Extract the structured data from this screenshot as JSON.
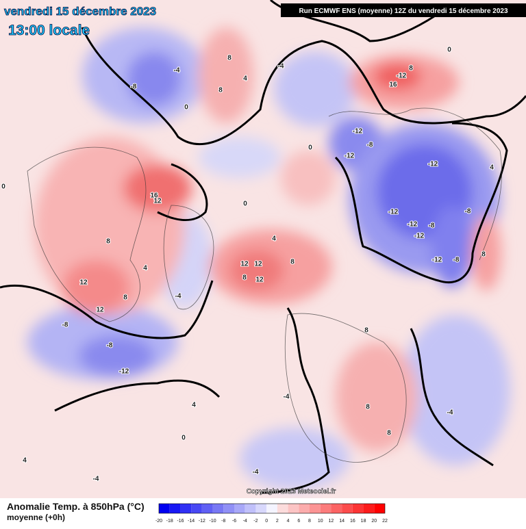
{
  "header": {
    "date": "vendredi 15 décembre 2023",
    "time": "13:00 locale",
    "run": "Run ECMWF ENS (moyenne) 12Z du vendredi 15 décembre 2023"
  },
  "copyright": "Copyright 2023 Meteociel.fr",
  "legend": {
    "title": "Anomalie Temp. à 850hPa (°C)",
    "subtitle": "moyenne  (+0h)",
    "ticks": [
      -20,
      -18,
      -16,
      -14,
      -12,
      -10,
      -8,
      -6,
      -4,
      -2,
      0,
      2,
      4,
      6,
      8,
      10,
      12,
      14,
      16,
      18,
      20,
      22
    ],
    "colors": [
      "#0000f0",
      "#1818f4",
      "#3030f4",
      "#4848f4",
      "#6060f4",
      "#7878f4",
      "#9090f6",
      "#a8a8f8",
      "#c0c0fa",
      "#d8d8fc",
      "#f4f4ff",
      "#fcdcdc",
      "#fcc4c4",
      "#fcacac",
      "#fc9494",
      "#fc7c7c",
      "#fc6464",
      "#fc4c4c",
      "#fc3434",
      "#fc1c1c",
      "#ff0000"
    ]
  },
  "contour_labels": [
    "-8",
    "-4",
    "0",
    "8",
    "8",
    "4",
    "-4",
    "0",
    "-12",
    "16",
    "8",
    "-12",
    "-8",
    "-12",
    "0",
    "-12",
    "-12",
    "-12",
    "-8",
    "-12",
    "-8",
    "4",
    "8",
    "-12",
    "-8",
    "16",
    "12",
    "8",
    "12",
    "8",
    "12",
    "-8",
    "-8",
    "-12",
    "12",
    "12",
    "8",
    "12",
    "8",
    "4",
    "8",
    "8",
    "8",
    "-4",
    "-4",
    "4",
    "0",
    "4",
    "-4",
    "-4",
    "0",
    "4",
    "-4",
    "0"
  ]
}
